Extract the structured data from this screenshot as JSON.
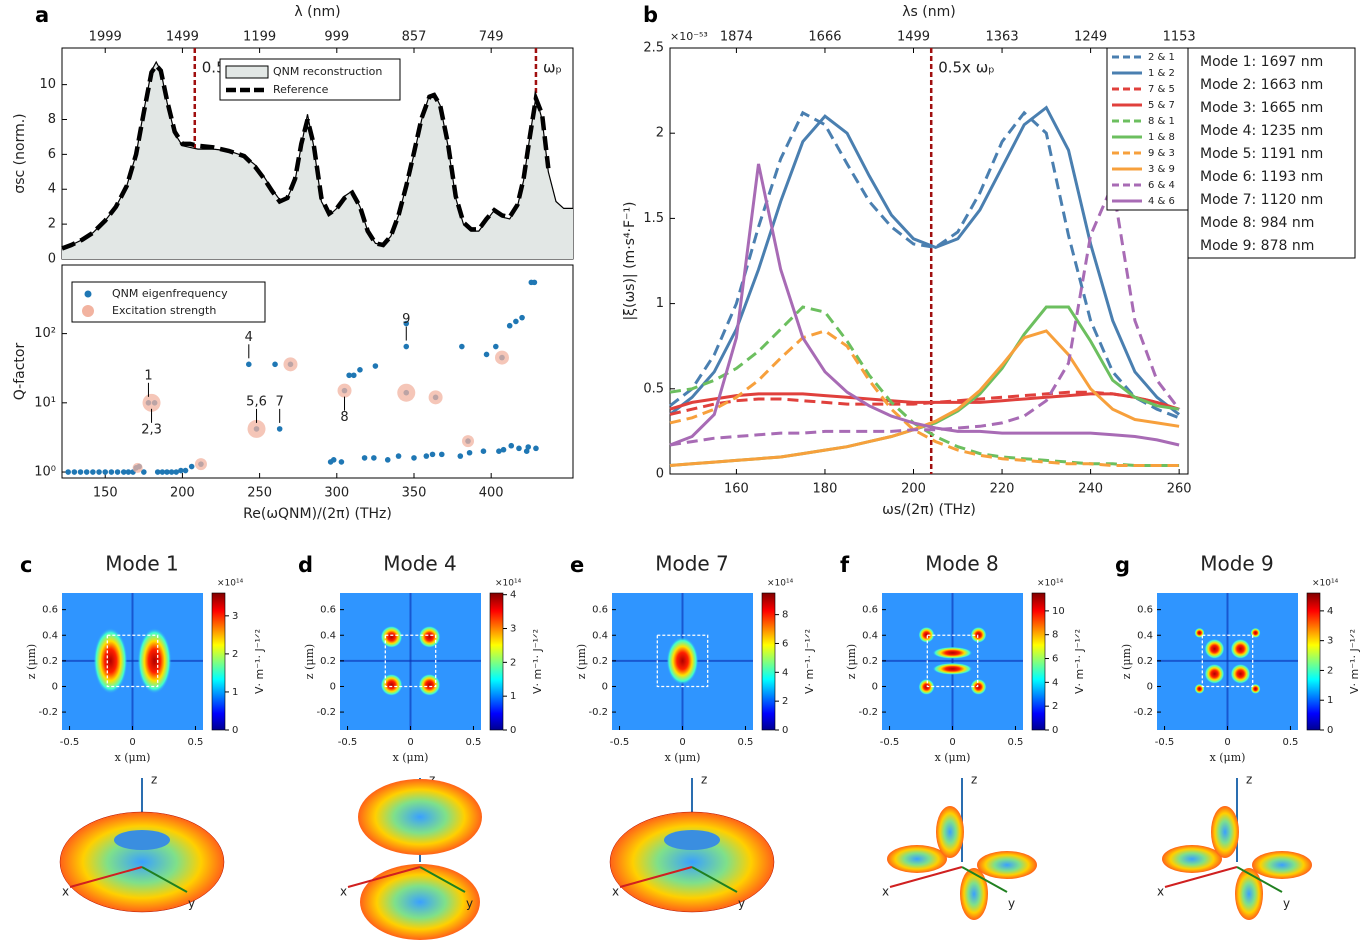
{
  "chart_data": [
    {
      "type": "area",
      "panel_label": "a",
      "y_label": "σsc (norm.)",
      "x2_label": "λ (nm)",
      "x": [
        122,
        128,
        135,
        142,
        150,
        157,
        164,
        170,
        175,
        180,
        183,
        186,
        190,
        195,
        200,
        205,
        210,
        220,
        230,
        240,
        247,
        253,
        258,
        263,
        268,
        273,
        277,
        281,
        285,
        290,
        295,
        300,
        305,
        310,
        315,
        320,
        325,
        330,
        335,
        340,
        345,
        350,
        355,
        360,
        363,
        367,
        372,
        377,
        382,
        387,
        392,
        397,
        402,
        407,
        412,
        417,
        421,
        425,
        429,
        433,
        437,
        442,
        447,
        453
      ],
      "xlim": [
        122,
        453
      ],
      "xticks": [
        150,
        200,
        250,
        300,
        350,
        400
      ],
      "x2ticks": [
        {
          "value": 150,
          "label": "1999"
        },
        {
          "value": 200,
          "label": "1499"
        },
        {
          "value": 250,
          "label": "1199"
        },
        {
          "value": 300,
          "label": "999"
        },
        {
          "value": 350,
          "label": "857"
        },
        {
          "value": 400,
          "label": "749"
        }
      ],
      "ylim": [
        0,
        12.1
      ],
      "yticks": [
        0,
        2,
        4,
        6,
        8,
        10
      ],
      "series": [
        {
          "name": "QNM reconstruction",
          "color": "#e2e7e5",
          "values": [
            0.6,
            0.8,
            1.1,
            1.5,
            2.2,
            3.0,
            4.2,
            6.0,
            8.5,
            10.8,
            11.3,
            10.8,
            9.0,
            7.2,
            6.5,
            6.4,
            6.3,
            6.3,
            6.2,
            5.9,
            5.4,
            4.7,
            4.0,
            3.4,
            3.5,
            4.5,
            6.5,
            8.3,
            6.5,
            3.3,
            2.5,
            2.9,
            3.6,
            3.9,
            3.0,
            1.6,
            0.9,
            0.8,
            1.3,
            2.5,
            4.2,
            6.0,
            8.0,
            9.4,
            9.5,
            8.8,
            6.5,
            3.5,
            2.0,
            1.6,
            1.6,
            2.2,
            2.8,
            2.4,
            2.3,
            3.0,
            4.5,
            7.0,
            9.3,
            8.0,
            5.0,
            3.3,
            2.9,
            2.9
          ]
        },
        {
          "name": "Reference",
          "color": "#000000",
          "dash": true,
          "values": [
            0.6,
            0.8,
            1.1,
            1.5,
            2.2,
            3.0,
            4.2,
            6.0,
            8.4,
            10.7,
            11.1,
            10.8,
            9.1,
            7.3,
            6.6,
            6.6,
            6.5,
            6.4,
            6.2,
            5.9,
            5.3,
            4.6,
            3.9,
            3.3,
            3.5,
            4.6,
            6.6,
            8.0,
            6.6,
            3.5,
            2.6,
            2.9,
            3.5,
            3.8,
            3.0,
            1.6,
            0.9,
            0.8,
            1.3,
            2.5,
            4.2,
            6.1,
            8.1,
            9.3,
            9.4,
            8.8,
            6.6,
            3.6,
            2.1,
            1.7,
            1.7,
            2.3,
            2.8,
            2.5,
            2.4,
            3.1,
            4.6,
            7.0,
            9.2,
            8.3,
            5.2,
            null,
            null,
            null
          ]
        }
      ],
      "vlines": [
        {
          "value": 208,
          "label": "0.5x ωₚ",
          "color": "#a00f0f"
        },
        {
          "value": 429,
          "label": "ωₚ",
          "color": "#a00f0f"
        }
      ]
    },
    {
      "type": "scatter",
      "x_label": "Re(ωQNM)/(2π) (THz)",
      "y_label": "Q-factor",
      "log_y": true,
      "xlim": [
        122,
        453
      ],
      "xticks": [
        150,
        200,
        250,
        300,
        350,
        400
      ],
      "ylim": [
        0.82,
        980
      ],
      "yticks": [
        {
          "value": 1,
          "label": "10⁰"
        },
        {
          "value": 10,
          "label": "10¹"
        },
        {
          "value": 100,
          "label": "10²"
        }
      ],
      "series": [
        {
          "name": "QNM eigenfrequency",
          "color": "#1f77b4",
          "x": [
            126,
            130,
            134,
            138,
            142,
            146,
            150,
            154,
            158,
            162,
            165,
            168,
            170,
            172,
            175,
            184,
            187,
            190,
            193,
            196,
            199,
            202,
            206,
            212,
            178,
            182,
            243,
            248,
            260,
            263,
            270,
            296,
            298,
            303,
            305,
            308,
            311,
            315,
            318,
            324,
            325,
            333,
            340,
            345,
            345,
            345,
            350,
            358,
            362,
            364,
            368,
            380,
            381,
            385,
            386,
            395,
            397,
            403,
            405,
            407,
            408,
            412,
            413,
            416,
            418,
            420,
            423,
            424,
            426,
            428,
            429
          ],
          "values": [
            1,
            1,
            1,
            1,
            1,
            1,
            1,
            1,
            1,
            1,
            1,
            1,
            1.15,
            1.2,
            1,
            1,
            1,
            1,
            1,
            1,
            1.05,
            1.05,
            1.2,
            1.3,
            10,
            10,
            36,
            4.2,
            36,
            4.2,
            36,
            1.4,
            1.5,
            1.4,
            15,
            25,
            25,
            30,
            1.6,
            1.6,
            34,
            1.5,
            1.7,
            65,
            140,
            14,
            1.6,
            1.7,
            1.8,
            12,
            1.8,
            1.7,
            65,
            2.8,
            1.9,
            2.0,
            50,
            65,
            2.0,
            45,
            2.1,
            130,
            2.4,
            150,
            2.2,
            170,
            2.0,
            2.3,
            550,
            550,
            2.2
          ]
        },
        {
          "name": "Excitation strength",
          "color": "#f2b3a0",
          "x": [
            171,
            180,
            212,
            248,
            270,
            305,
            345,
            364,
            385,
            407
          ],
          "values": [
            1.15,
            10,
            1.3,
            4.2,
            36,
            15,
            14,
            12,
            2.8,
            45
          ],
          "sizes": [
            5,
            9,
            6,
            9,
            7,
            7,
            9,
            7,
            6,
            7
          ]
        }
      ],
      "annotations": [
        {
          "text": "1",
          "x": 178,
          "y": 10,
          "side": "above"
        },
        {
          "text": "2,3",
          "x": 180,
          "y": 10,
          "side": "below"
        },
        {
          "text": "4",
          "x": 243,
          "y": 36,
          "side": "above"
        },
        {
          "text": "5,6",
          "x": 248,
          "y": 4.2,
          "side": "above"
        },
        {
          "text": "7",
          "x": 263,
          "y": 4.2,
          "side": "above"
        },
        {
          "text": "8",
          "x": 305,
          "y": 15,
          "side": "below"
        },
        {
          "text": "9",
          "x": 345,
          "y": 65,
          "side": "above"
        }
      ]
    },
    {
      "type": "line",
      "panel_label": "b",
      "x_label": "ωs/(2π) (THz)",
      "y_label": "|ξ(ωs)| (m·s⁴·F⁻¹)",
      "x2_label": "λs (nm)",
      "y_scale": "×10⁻⁵³",
      "x": [
        145,
        150,
        155,
        160,
        165,
        170,
        175,
        180,
        185,
        190,
        195,
        200,
        205,
        210,
        215,
        220,
        225,
        230,
        235,
        240,
        245,
        250,
        255,
        260
      ],
      "xlim": [
        145,
        262
      ],
      "xticks": [
        160,
        180,
        200,
        220,
        240,
        260
      ],
      "x2ticks": [
        {
          "value": 160,
          "label": "1874"
        },
        {
          "value": 180,
          "label": "1666"
        },
        {
          "value": 200,
          "label": "1499"
        },
        {
          "value": 220,
          "label": "1363"
        },
        {
          "value": 240,
          "label": "1249"
        },
        {
          "value": 260,
          "label": "1153"
        }
      ],
      "ylim": [
        0,
        2.5
      ],
      "yticks": [
        0,
        0.5,
        1,
        1.5,
        2,
        2.5
      ],
      "series": [
        {
          "name": "2 & 1",
          "color": "#4a7fb0",
          "dash": true,
          "values": [
            0.4,
            0.5,
            0.7,
            1.0,
            1.45,
            1.85,
            2.12,
            2.05,
            1.82,
            1.6,
            1.45,
            1.35,
            1.33,
            1.42,
            1.65,
            1.95,
            2.12,
            2.0,
            1.4,
            0.9,
            0.6,
            0.45,
            0.38,
            0.33
          ]
        },
        {
          "name": "1 & 2",
          "color": "#4a7fb0",
          "values": [
            0.35,
            0.45,
            0.6,
            0.85,
            1.2,
            1.6,
            1.95,
            2.1,
            2.0,
            1.75,
            1.52,
            1.38,
            1.33,
            1.38,
            1.55,
            1.8,
            2.05,
            2.15,
            1.9,
            1.35,
            0.9,
            0.6,
            0.45,
            0.35
          ]
        },
        {
          "name": "7 & 5",
          "color": "#e0403c",
          "dash": true,
          "values": [
            0.35,
            0.38,
            0.41,
            0.43,
            0.44,
            0.44,
            0.43,
            0.42,
            0.41,
            0.41,
            0.41,
            0.41,
            0.42,
            0.43,
            0.44,
            0.45,
            0.46,
            0.47,
            0.48,
            0.48,
            0.47,
            0.45,
            0.42,
            0.38
          ]
        },
        {
          "name": "5 & 7",
          "color": "#e0403c",
          "values": [
            0.38,
            0.42,
            0.44,
            0.46,
            0.47,
            0.47,
            0.47,
            0.46,
            0.45,
            0.44,
            0.43,
            0.42,
            0.42,
            0.42,
            0.42,
            0.43,
            0.44,
            0.45,
            0.46,
            0.47,
            0.47,
            0.45,
            0.42,
            0.38
          ]
        },
        {
          "name": "8 & 1",
          "color": "#6cbf5f",
          "dash": true,
          "values": [
            0.48,
            0.5,
            0.55,
            0.62,
            0.72,
            0.85,
            0.98,
            0.95,
            0.78,
            0.58,
            0.42,
            0.3,
            0.22,
            0.16,
            0.12,
            0.1,
            0.09,
            0.08,
            0.07,
            0.06,
            0.06,
            0.05,
            0.05,
            0.05
          ]
        },
        {
          "name": "1 & 8",
          "color": "#6cbf5f",
          "values": [
            0.05,
            0.06,
            0.07,
            0.08,
            0.09,
            0.1,
            0.12,
            0.14,
            0.16,
            0.19,
            0.22,
            0.26,
            0.3,
            0.37,
            0.47,
            0.62,
            0.82,
            0.98,
            0.98,
            0.78,
            0.55,
            0.45,
            0.4,
            0.38
          ]
        },
        {
          "name": "9 & 3",
          "color": "#f7a03c",
          "dash": true,
          "values": [
            0.3,
            0.33,
            0.38,
            0.45,
            0.55,
            0.68,
            0.8,
            0.84,
            0.75,
            0.55,
            0.38,
            0.26,
            0.19,
            0.14,
            0.11,
            0.09,
            0.08,
            0.07,
            0.06,
            0.06,
            0.05,
            0.05,
            0.05,
            0.05
          ]
        },
        {
          "name": "3 & 9",
          "color": "#f7a03c",
          "values": [
            0.05,
            0.06,
            0.07,
            0.08,
            0.09,
            0.1,
            0.12,
            0.14,
            0.16,
            0.19,
            0.22,
            0.26,
            0.31,
            0.38,
            0.49,
            0.64,
            0.8,
            0.84,
            0.7,
            0.5,
            0.38,
            0.32,
            0.3,
            0.28
          ]
        },
        {
          "name": "6 & 4",
          "color": "#a86bb5",
          "dash": true,
          "values": [
            0.17,
            0.19,
            0.21,
            0.22,
            0.23,
            0.24,
            0.24,
            0.25,
            0.25,
            0.25,
            0.25,
            0.26,
            0.26,
            0.27,
            0.28,
            0.3,
            0.34,
            0.43,
            0.65,
            1.4,
            1.7,
            0.9,
            0.55,
            0.38
          ]
        },
        {
          "name": "4 & 6",
          "color": "#a86bb5",
          "values": [
            0.17,
            0.22,
            0.35,
            0.8,
            1.82,
            1.2,
            0.8,
            0.6,
            0.48,
            0.4,
            0.34,
            0.3,
            0.27,
            0.25,
            0.25,
            0.24,
            0.24,
            0.24,
            0.24,
            0.24,
            0.23,
            0.22,
            0.2,
            0.17
          ]
        }
      ],
      "vlines": [
        {
          "value": 204,
          "label": "0.5x ωₚ",
          "color": "#a00f0f"
        }
      ],
      "mode_list": [
        "Mode 1: 1697 nm",
        "Mode 2: 1663 nm",
        "Mode 3: 1665 nm",
        "Mode 4: 1235 nm",
        "Mode 5: 1191 nm",
        "Mode 6: 1193 nm",
        "Mode 7: 1120 nm",
        "Mode 8: 984 nm",
        "Mode 9: 878 nm"
      ]
    }
  ],
  "field_maps": {
    "x_label": "x (μm)",
    "y_label": "z (μm)",
    "xlim": [
      -0.56,
      0.56
    ],
    "ylim": [
      -0.34,
      0.73
    ],
    "xticks": [
      -0.5,
      0,
      0.5
    ],
    "yticks": [
      -0.2,
      0,
      0.2,
      0.4,
      0.6
    ],
    "cbar_scale": "×10¹⁴",
    "cbar_label": "V· m⁻¹· J⁻¹ᐟ²",
    "axis_names": [
      "x",
      "y",
      "z"
    ],
    "panels": [
      {
        "label": "c",
        "title": "Mode 1",
        "cbar_lim": [
          0,
          3.6
        ],
        "cbar_ticks": [
          0,
          1,
          2,
          3
        ]
      },
      {
        "label": "d",
        "title": "Mode 4",
        "cbar_lim": [
          0,
          4.05
        ],
        "cbar_ticks": [
          0,
          1,
          2,
          3,
          4
        ]
      },
      {
        "label": "e",
        "title": "Mode 7",
        "cbar_lim": [
          0,
          9.5
        ],
        "cbar_ticks": [
          0,
          2,
          4,
          6,
          8
        ]
      },
      {
        "label": "f",
        "title": "Mode 8",
        "cbar_lim": [
          0,
          11.5
        ],
        "cbar_ticks": [
          0,
          2,
          4,
          6,
          8,
          10
        ]
      },
      {
        "label": "g",
        "title": "Mode 9",
        "cbar_lim": [
          0,
          4.6
        ],
        "cbar_ticks": [
          0,
          1,
          2,
          3,
          4
        ]
      }
    ]
  }
}
